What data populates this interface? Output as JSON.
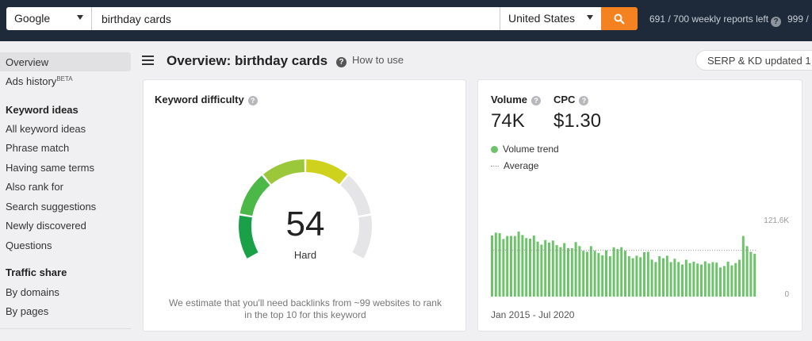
{
  "search": {
    "engine": "Google",
    "query": "birthday cards",
    "country": "United States",
    "reports_left": "691 / 700 weekly reports left",
    "reports_right": "999 /"
  },
  "sidebar": {
    "items_top": [
      {
        "label": "Overview",
        "active": true
      },
      {
        "label": "Ads history",
        "badge": "BETA"
      }
    ],
    "keyword_ideas_title": "Keyword ideas",
    "keyword_ideas": [
      "All keyword ideas",
      "Phrase match",
      "Having same terms",
      "Also rank for",
      "Search suggestions",
      "Newly discovered",
      "Questions"
    ],
    "traffic_share_title": "Traffic share",
    "traffic_share": [
      "By domains",
      "By pages"
    ]
  },
  "header": {
    "title": "Overview: birthday cards",
    "how_to_use": "How to use",
    "serp_badge": "SERP & KD updated 1"
  },
  "kd_card": {
    "title": "Keyword difficulty",
    "value": "54",
    "label": "Hard",
    "note_line1": "We estimate that you'll need backlinks from ~99 websites to rank",
    "note_line2": "in the top 10 for this keyword",
    "segment_colors": [
      "#1aa148",
      "#4cb847",
      "#9bc83a",
      "#cfd21c",
      "#e5e5e8",
      "#e5e5e8"
    ]
  },
  "volume_card": {
    "volume_label": "Volume",
    "volume_value": "74K",
    "cpc_label": "CPC",
    "cpc_value": "$1.30",
    "legend_trend": "Volume trend",
    "legend_average": "Average",
    "date_range": "Jan 2015 - Jul 2020",
    "bar_color": "#6cc36a"
  },
  "chart_data": {
    "type": "bar",
    "title": "Volume trend",
    "xlabel": "Jan 2015 - Jul 2020",
    "ymax_label": "121.6K",
    "ymin_label": "0",
    "ylim": [
      0,
      121600
    ],
    "average": 74000,
    "values": [
      97600,
      102100,
      101300,
      92000,
      96800,
      96800,
      96800,
      103800,
      98400,
      93500,
      92400,
      97600,
      87800,
      83000,
      90300,
      86300,
      89500,
      82200,
      79000,
      85500,
      77400,
      77400,
      87000,
      80600,
      73200,
      71500,
      80600,
      73200,
      69500,
      66000,
      74000,
      64500,
      78800,
      75800,
      78900,
      73200,
      64500,
      61300,
      65300,
      62900,
      70900,
      71500,
      59100,
      55100,
      64500,
      61300,
      65300,
      55100,
      60500,
      55300,
      51200,
      58900,
      53500,
      55800,
      52800,
      51200,
      56400,
      52800,
      55100,
      54300,
      46500,
      48900,
      55800,
      49800,
      53500,
      58900,
      96800,
      80600,
      71500,
      68300
    ]
  }
}
